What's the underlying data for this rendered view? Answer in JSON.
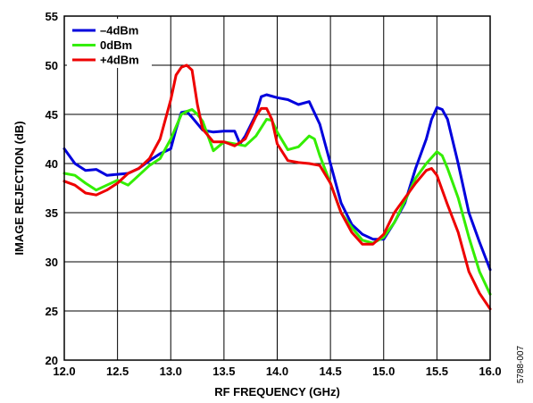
{
  "chart_data": {
    "type": "line",
    "xlabel": "RF FREQUENCY (GHz)",
    "ylabel": "IMAGE REJECTION (dB)",
    "xlim": [
      12.0,
      16.0
    ],
    "ylim": [
      20,
      55
    ],
    "xticks": [
      "12.0",
      "12.5",
      "13.0",
      "13.5",
      "14.0",
      "14.5",
      "15.0",
      "15.5",
      "16.0"
    ],
    "yticks": [
      "20",
      "25",
      "30",
      "35",
      "40",
      "45",
      "50",
      "55"
    ],
    "grid": true,
    "legend_position": "top-left",
    "figure_id": "5788-007",
    "series": [
      {
        "name": "–4dBm",
        "color": "#0000dd",
        "x": [
          12.0,
          12.1,
          12.2,
          12.3,
          12.4,
          12.5,
          12.6,
          12.7,
          12.8,
          12.9,
          13.0,
          13.05,
          13.1,
          13.15,
          13.2,
          13.3,
          13.4,
          13.5,
          13.6,
          13.65,
          13.7,
          13.8,
          13.85,
          13.9,
          14.0,
          14.1,
          14.2,
          14.3,
          14.4,
          14.5,
          14.6,
          14.7,
          14.8,
          14.9,
          15.0,
          15.1,
          15.2,
          15.3,
          15.4,
          15.45,
          15.5,
          15.55,
          15.6,
          15.7,
          15.8,
          15.9,
          16.0
        ],
        "values": [
          41.5,
          40.0,
          39.3,
          39.4,
          38.8,
          38.9,
          39.0,
          39.5,
          40.3,
          41.0,
          41.5,
          43.5,
          45.2,
          45.3,
          44.7,
          43.4,
          43.2,
          43.3,
          43.3,
          42.0,
          42.8,
          45.0,
          46.8,
          47.0,
          46.7,
          46.5,
          46.0,
          46.3,
          44.0,
          40.0,
          36.0,
          33.8,
          32.8,
          32.3,
          32.3,
          34.0,
          36.0,
          39.5,
          42.5,
          44.5,
          45.7,
          45.5,
          44.5,
          40.0,
          35.0,
          32.0,
          29.2
        ]
      },
      {
        "name": "0dBm",
        "color": "#33ee00",
        "x": [
          12.0,
          12.1,
          12.2,
          12.3,
          12.4,
          12.5,
          12.6,
          12.7,
          12.8,
          12.9,
          13.0,
          13.1,
          13.15,
          13.2,
          13.25,
          13.3,
          13.4,
          13.5,
          13.6,
          13.7,
          13.8,
          13.9,
          13.95,
          14.0,
          14.1,
          14.2,
          14.3,
          14.35,
          14.4,
          14.5,
          14.6,
          14.7,
          14.8,
          14.9,
          15.0,
          15.1,
          15.2,
          15.3,
          15.4,
          15.5,
          15.55,
          15.6,
          15.7,
          15.8,
          15.9,
          16.0
        ],
        "values": [
          39.0,
          38.8,
          38.0,
          37.3,
          37.8,
          38.3,
          37.8,
          38.8,
          39.8,
          40.5,
          42.5,
          45.0,
          45.3,
          45.5,
          45.0,
          44.3,
          41.3,
          42.2,
          42.0,
          41.8,
          42.8,
          44.5,
          44.4,
          43.2,
          41.4,
          41.7,
          42.8,
          42.5,
          40.8,
          38.0,
          35.0,
          33.5,
          32.2,
          31.9,
          32.5,
          34.0,
          36.2,
          38.5,
          40.0,
          41.2,
          40.8,
          39.5,
          36.5,
          32.5,
          29.0,
          26.7
        ]
      },
      {
        "name": "+4dBm",
        "color": "#ee0000",
        "x": [
          12.0,
          12.1,
          12.2,
          12.3,
          12.4,
          12.5,
          12.6,
          12.7,
          12.8,
          12.9,
          13.0,
          13.05,
          13.1,
          13.15,
          13.2,
          13.25,
          13.3,
          13.4,
          13.5,
          13.6,
          13.7,
          13.8,
          13.85,
          13.9,
          13.95,
          14.0,
          14.1,
          14.2,
          14.3,
          14.4,
          14.5,
          14.6,
          14.7,
          14.8,
          14.9,
          15.0,
          15.1,
          15.2,
          15.3,
          15.4,
          15.45,
          15.5,
          15.6,
          15.7,
          15.8,
          15.9,
          16.0
        ],
        "values": [
          38.2,
          37.8,
          37.0,
          36.8,
          37.3,
          38.0,
          39.0,
          39.5,
          40.5,
          42.5,
          46.5,
          49.0,
          49.8,
          50.0,
          49.5,
          46.0,
          43.5,
          42.2,
          42.2,
          41.8,
          42.5,
          44.8,
          45.6,
          45.6,
          44.5,
          42.0,
          40.3,
          40.1,
          40.0,
          39.8,
          38.0,
          35.0,
          33.0,
          31.8,
          31.8,
          32.8,
          35.0,
          36.5,
          38.0,
          39.3,
          39.5,
          38.8,
          35.8,
          33.0,
          29.0,
          26.8,
          25.2
        ]
      }
    ]
  }
}
